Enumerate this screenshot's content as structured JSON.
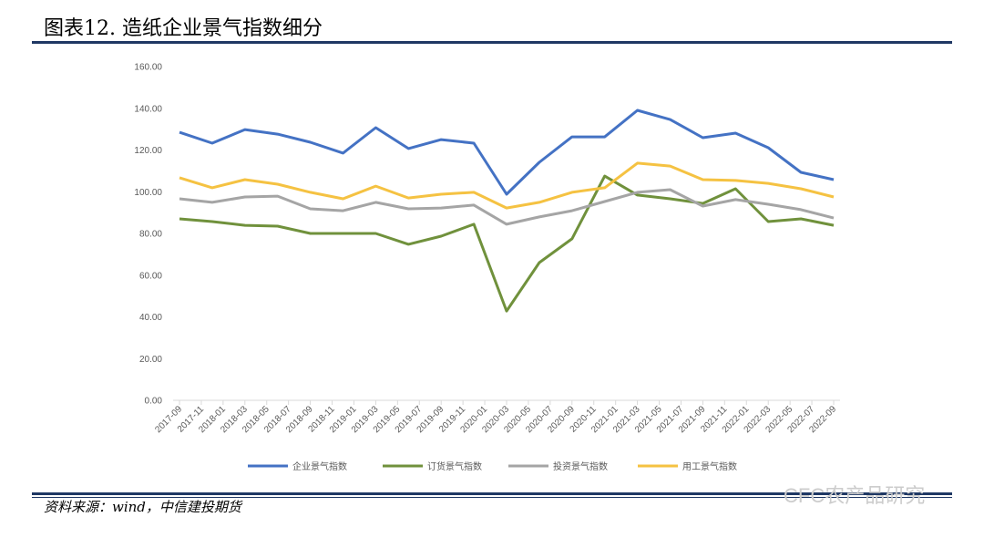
{
  "title": "图表12. 造纸企业景气指数细分",
  "source": "资料来源：wind，中信建投期货",
  "watermark": "CFC农产品研究",
  "chart_data": {
    "type": "line",
    "xticks": [
      "2017-09",
      "2017-11",
      "2018-01",
      "2018-03",
      "2018-05",
      "2018-07",
      "2018-09",
      "2018-11",
      "2019-01",
      "2019-03",
      "2019-05",
      "2019-07",
      "2019-09",
      "2019-11",
      "2020-01",
      "2020-03",
      "2020-05",
      "2020-07",
      "2020-09",
      "2020-11",
      "2021-01",
      "2021-03",
      "2021-05",
      "2021-07",
      "2021-09",
      "2021-11",
      "2022-01",
      "2022-03",
      "2022-05",
      "2022-07",
      "2022-09"
    ],
    "ylim": [
      0,
      160
    ],
    "yticks": [
      {
        "value": 0,
        "label": "0.00"
      },
      {
        "value": 20,
        "label": "20.00"
      },
      {
        "value": 40,
        "label": "40.00"
      },
      {
        "value": 60,
        "label": "60.00"
      },
      {
        "value": 80,
        "label": "80.00"
      },
      {
        "value": 100,
        "label": "100.00"
      },
      {
        "value": 120,
        "label": "120.00"
      },
      {
        "value": 140,
        "label": "140.00"
      },
      {
        "value": 160,
        "label": "160.00"
      }
    ],
    "legend": "bottom",
    "series": [
      {
        "name": "企业景气指数",
        "color": "#4472c4",
        "values": [
          128.5,
          123.3,
          129.8,
          127.6,
          123.7,
          118.5,
          130.7,
          120.7,
          125,
          123.3,
          98.8,
          114.1,
          126.3,
          126.3,
          139,
          134.6,
          125.9,
          128.1,
          121.1,
          109.3,
          105.8
        ]
      },
      {
        "name": "订货景气指数",
        "color": "#70913c",
        "values": [
          87,
          85.7,
          83.9,
          83.5,
          80,
          80,
          80,
          74.8,
          78.7,
          84.4,
          42.8,
          66,
          77.4,
          107.5,
          98.4,
          96.6,
          94.4,
          101.4,
          85.7,
          87,
          83.9
        ]
      },
      {
        "name": "投资景气指数",
        "color": "#a5a5a5",
        "values": [
          96.6,
          94.9,
          97.5,
          97.9,
          91.8,
          90.9,
          94.9,
          91.8,
          92.2,
          93.6,
          84.4,
          87.9,
          90.9,
          95.3,
          99.7,
          101,
          93.1,
          96.2,
          94,
          91.4,
          87.4
        ]
      },
      {
        "name": "用工景气指数",
        "color": "#f5c242",
        "values": [
          106.7,
          101.9,
          105.8,
          103.6,
          99.7,
          96.6,
          102.7,
          97,
          98.8,
          99.7,
          92.2,
          94.9,
          99.7,
          101.9,
          113.7,
          112.3,
          105.8,
          105.4,
          104,
          101.4,
          97.5
        ]
      }
    ]
  }
}
